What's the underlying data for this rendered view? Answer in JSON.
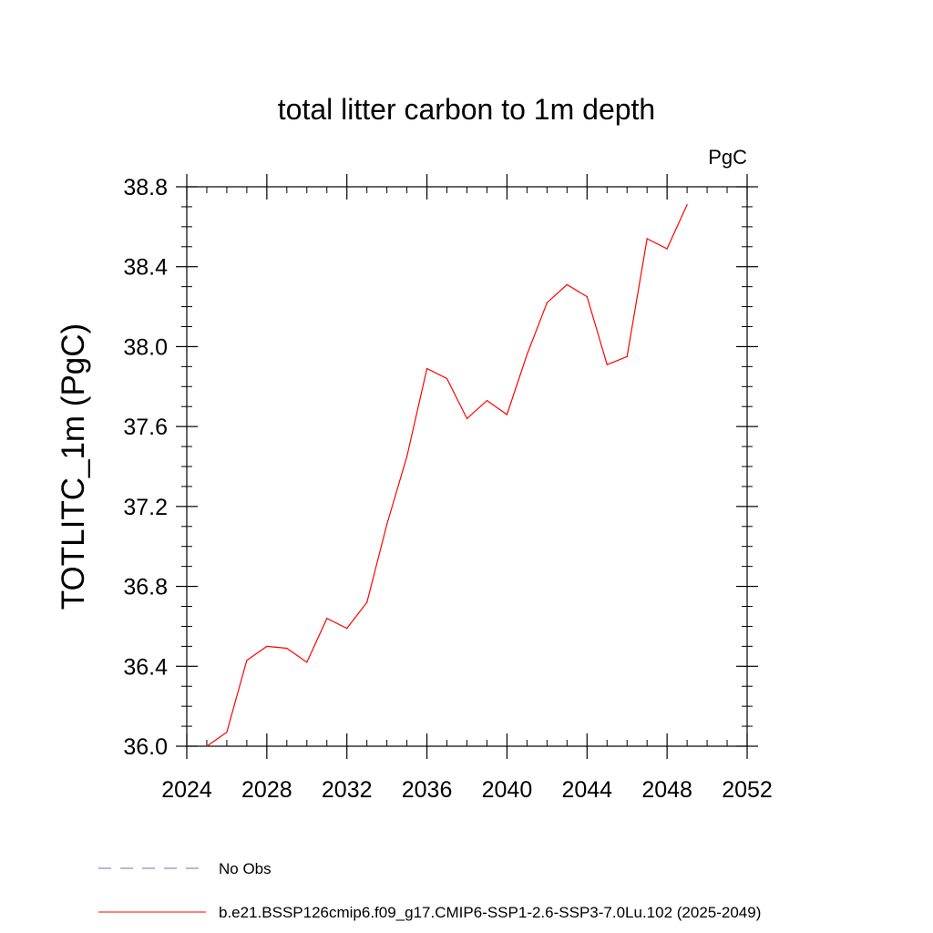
{
  "chart_data": {
    "type": "line",
    "title": "total litter carbon to 1m depth",
    "units": "PgC",
    "ylabel": "TOTLITC_1m  (PgC)",
    "xlabel": "",
    "xlim": [
      2024,
      2052
    ],
    "ylim": [
      36.0,
      38.8
    ],
    "x_ticks": [
      2024,
      2028,
      2032,
      2036,
      2040,
      2044,
      2048,
      2052
    ],
    "x_tick_labels": [
      "2024",
      "2028",
      "2032",
      "2036",
      "2040",
      "2044",
      "2048",
      "2052"
    ],
    "y_ticks": [
      36.0,
      36.4,
      36.8,
      37.2,
      37.6,
      38.0,
      38.4,
      38.8
    ],
    "y_tick_labels": [
      "36.0",
      "36.4",
      "36.8",
      "37.2",
      "37.6",
      "38.0",
      "38.4",
      "38.8"
    ],
    "grid": false,
    "legend_placement": "bottom-left",
    "series": [
      {
        "name": "b.e21.BSSP126cmip6.f09_g17.CMIP6-SSP1-2.6-SSP3-7.0Lu.102 (2025-2049)",
        "color": "#ff0000",
        "style": "solid",
        "x": [
          2025,
          2026,
          2027,
          2028,
          2029,
          2030,
          2031,
          2032,
          2033,
          2034,
          2035,
          2036,
          2037,
          2038,
          2039,
          2040,
          2041,
          2042,
          2043,
          2044,
          2045,
          2046,
          2047,
          2048,
          2049
        ],
        "y": [
          36.0,
          36.07,
          36.43,
          36.5,
          36.49,
          36.42,
          36.64,
          36.59,
          36.72,
          37.11,
          37.45,
          37.89,
          37.84,
          37.64,
          37.73,
          37.66,
          37.96,
          38.22,
          38.31,
          38.25,
          37.91,
          37.95,
          38.54,
          38.49,
          38.71
        ]
      },
      {
        "name": "No Obs",
        "color": "#7b68b0",
        "style": "dashed",
        "x": [],
        "y": []
      }
    ],
    "legend": [
      {
        "label": "No Obs",
        "color": "#7b68b0",
        "style": "dashed"
      },
      {
        "label": "b.e21.BSSP126cmip6.f09_g17.CMIP6-SSP1-2.6-SSP3-7.0Lu.102 (2025-2049)",
        "color": "#ff0000",
        "style": "solid"
      }
    ]
  }
}
